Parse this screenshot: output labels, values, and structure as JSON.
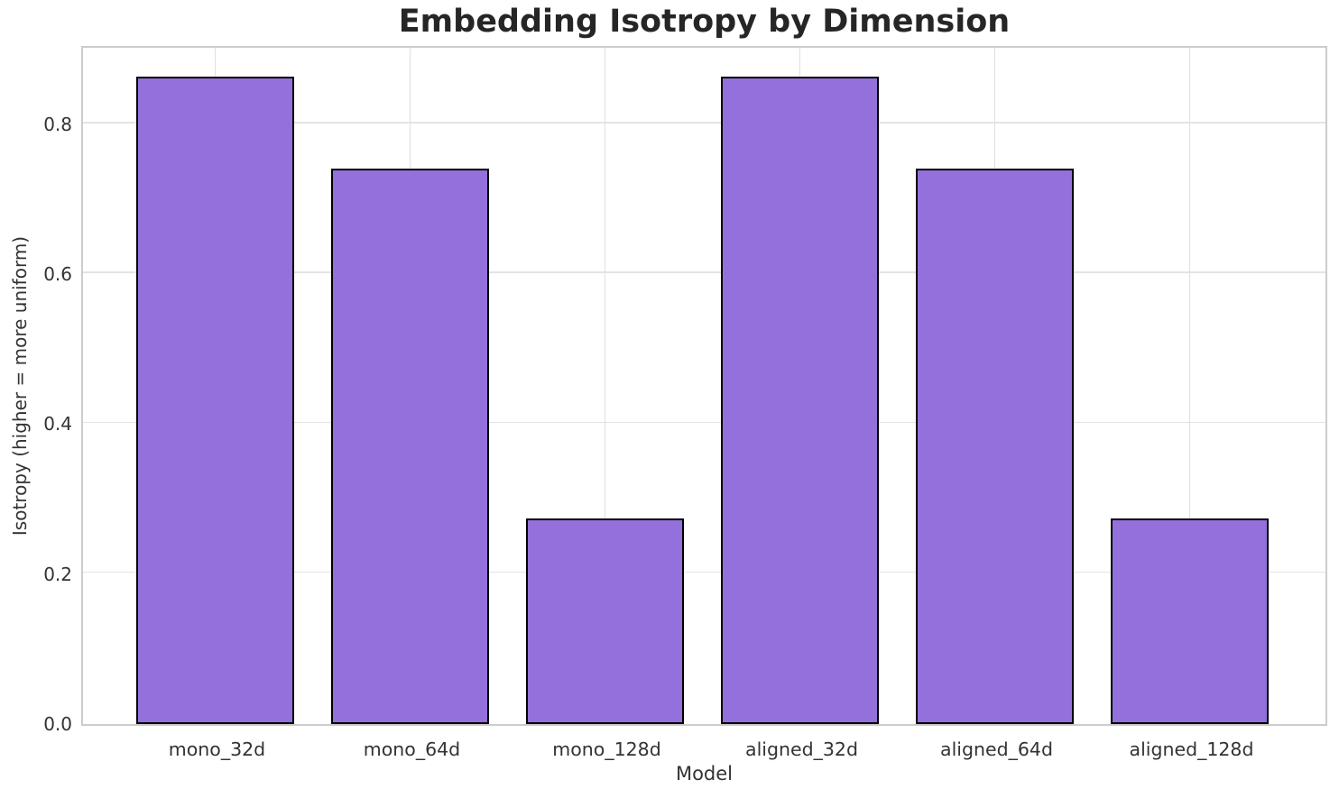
{
  "chart_data": {
    "type": "bar",
    "title": "Embedding Isotropy by Dimension",
    "xlabel": "Model",
    "ylabel": "Isotropy (higher = more uniform)",
    "categories": [
      "mono_32d",
      "mono_64d",
      "mono_128d",
      "aligned_32d",
      "aligned_64d",
      "aligned_128d"
    ],
    "values": [
      0.86,
      0.737,
      0.27,
      0.86,
      0.737,
      0.27
    ],
    "ytick_labels": [
      "0.0",
      "0.2",
      "0.4",
      "0.6",
      "0.8"
    ],
    "ytick_values": [
      0.0,
      0.2,
      0.4,
      0.6,
      0.8
    ],
    "ylim": [
      0,
      0.902
    ],
    "grid": true,
    "legend": null,
    "bar_color": "#9370DB",
    "bar_edge_color": "#000000",
    "title_color": "#262626",
    "text_color": "#333333",
    "grid_color": "#e4e4e4",
    "spine_color": "#cccccc"
  }
}
